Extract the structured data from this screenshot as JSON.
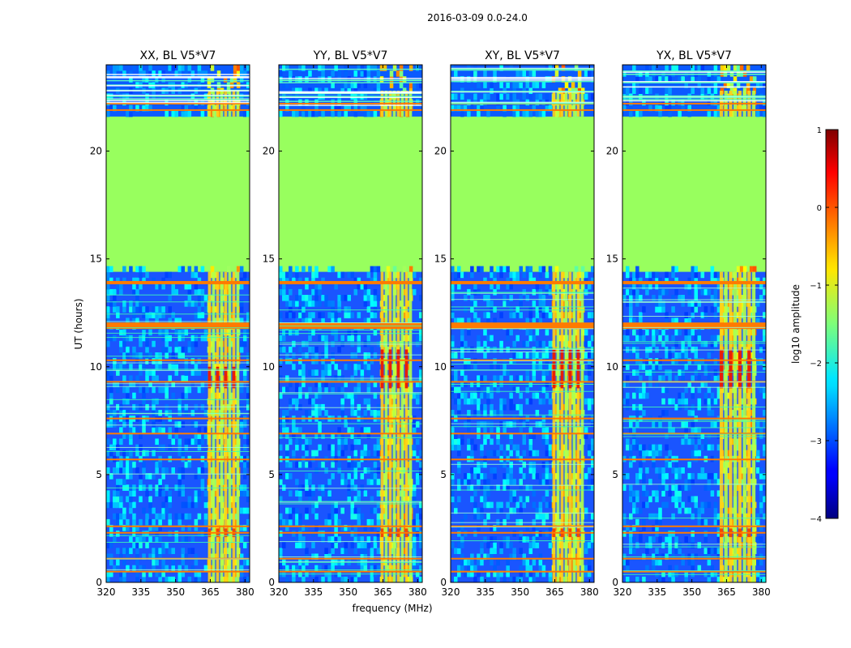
{
  "chart_data": {
    "type": "heatmap",
    "title": "2016-03-09 0.0-24.0",
    "xlabel": "frequency (MHz)",
    "ylabel": "UT (hours)",
    "xlim": [
      320,
      382
    ],
    "ylim": [
      0,
      24
    ],
    "xticks": [
      320,
      335,
      350,
      365,
      380
    ],
    "yticks": [
      0,
      5,
      10,
      15,
      20
    ],
    "panels": [
      {
        "title": "XX, BL V5*V7",
        "band_start": 364,
        "bright_time": [
          9.0,
          10.0
        ]
      },
      {
        "title": "YY, BL V5*V7",
        "band_start": 364,
        "bright_time": [
          9.0,
          10.8
        ]
      },
      {
        "title": "XY, BL V5*V7",
        "band_start": 364,
        "bright_time": [
          9.0,
          10.8
        ]
      },
      {
        "title": "YX, BL V5*V7",
        "band_start": 362,
        "bright_time": [
          9.0,
          10.8
        ]
      }
    ],
    "flagged_time_range": [
      14.4,
      21.6
    ],
    "rfi_band_mhz": [
      362,
      378
    ],
    "strong_rfi_times": [
      0.5,
      1.1,
      2.3,
      2.6,
      5.7,
      6.9,
      7.6,
      9.3,
      10.3,
      11.9,
      13.9,
      21.9,
      22.2
    ],
    "colorbar": {
      "label": "log10 amplitude",
      "range": [
        -4,
        1
      ],
      "ticks": [
        "1",
        "0",
        "−1",
        "−2",
        "−3",
        "−4"
      ],
      "colormap": "jet"
    }
  }
}
